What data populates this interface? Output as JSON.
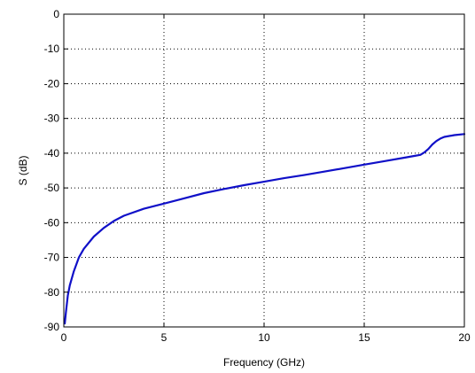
{
  "chart_data": {
    "type": "line",
    "title": "",
    "xlabel": "Frequency (GHz)",
    "ylabel": "S (dB)",
    "xlim": [
      0,
      20
    ],
    "ylim": [
      -90,
      0
    ],
    "x_ticks": [
      0,
      5,
      10,
      15,
      20
    ],
    "y_ticks": [
      0,
      -10,
      -20,
      -30,
      -40,
      -50,
      -60,
      -70,
      -80,
      -90
    ],
    "grid": true,
    "grid_style": "dotted",
    "legend": "none",
    "series": [
      {
        "color": "#1010c8",
        "x": [
          0.05,
          0.1,
          0.2,
          0.3,
          0.5,
          0.75,
          1.0,
          1.5,
          2.0,
          2.5,
          3.0,
          4.0,
          5.0,
          6.0,
          7.0,
          8.0,
          9.0,
          10.0,
          11.0,
          12.0,
          13.0,
          14.0,
          15.0,
          16.0,
          17.0,
          17.5,
          17.8,
          18.0,
          18.2,
          18.4,
          18.6,
          18.8,
          19.0,
          19.5,
          20.0
        ],
        "y": [
          -89,
          -86,
          -81,
          -78,
          -74,
          -70,
          -67.5,
          -64,
          -61.5,
          -59.5,
          -58,
          -56,
          -54.5,
          -53,
          -51.5,
          -50.3,
          -49.2,
          -48.2,
          -47.2,
          -46.3,
          -45.3,
          -44.3,
          -43.3,
          -42.3,
          -41.3,
          -40.8,
          -40.5,
          -39.8,
          -38.8,
          -37.5,
          -36.5,
          -35.8,
          -35.3,
          -34.8,
          -34.5
        ]
      }
    ]
  }
}
